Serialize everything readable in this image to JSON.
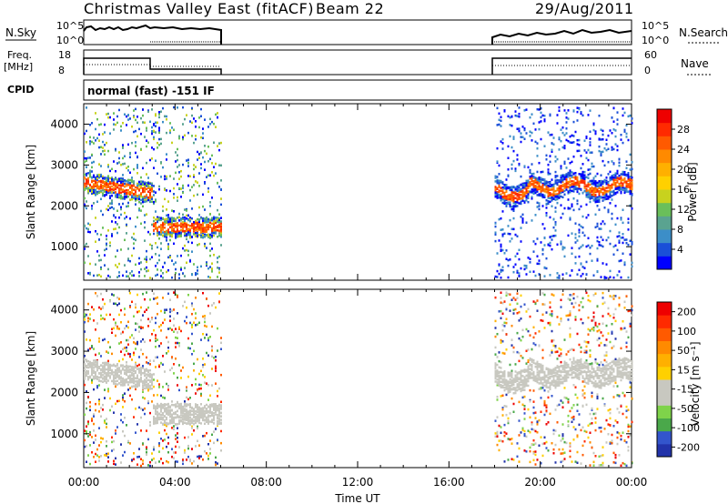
{
  "title": {
    "station": "Christmas Valley East (fitACF)",
    "beam": "Beam 22",
    "date": "29/Aug/2011"
  },
  "top_panels": {
    "nsky_label": "N.Sky",
    "nsky_ticks": [
      "10^5",
      "10^0"
    ],
    "nsearch_label": "N.Search",
    "freq_label": "Freq.",
    "freq_unit": "[MHz]",
    "freq_ticks": [
      "18",
      "8"
    ],
    "nave_label": "Nave",
    "nave_ticks": [
      "60",
      "0"
    ],
    "cpid_label": "CPID",
    "cpid_value": "normal (fast) -151 IF"
  },
  "chart_data": [
    {
      "type": "heatmap",
      "name": "power-panel",
      "ylabel": "Slant Range [km]",
      "yticks": [
        1000,
        2000,
        3000,
        4000
      ],
      "ylim": [
        180,
        4500
      ],
      "xlabel": "",
      "xticks": [],
      "colorbar": {
        "label": "Power [dB]",
        "ticks": [
          "4",
          "8",
          "12",
          "16",
          "20",
          "24",
          "28"
        ],
        "range": [
          0,
          32
        ],
        "colors": [
          "#0000ff",
          "#1a4fd8",
          "#3c8ec8",
          "#5aa390",
          "#6abf5a",
          "#c8d21e",
          "#ffd000",
          "#ffb000",
          "#ff8a00",
          "#ff5a00",
          "#ff2a00",
          "#ee0000"
        ]
      }
    },
    {
      "type": "heatmap",
      "name": "velocity-panel",
      "ylabel": "Slant Range [km]",
      "yticks": [
        1000,
        2000,
        3000,
        4000
      ],
      "ylim": [
        180,
        4500
      ],
      "xlabel": "Time UT",
      "xticks": [
        "00:00",
        "04:00",
        "08:00",
        "12:00",
        "16:00",
        "20:00",
        "00:00"
      ],
      "colorbar": {
        "label": "Velocity [m s⁻¹]",
        "ticks": [
          "200",
          "100",
          "50",
          "15",
          "-15",
          "-50",
          "-100",
          "-200"
        ],
        "colors": [
          "#2233aa",
          "#3355cc",
          "#4aa84a",
          "#7fd34a",
          "#c8c8c0",
          "#c8c8c0",
          "#ffd000",
          "#ffb000",
          "#ff8a00",
          "#ff5a00",
          "#ff2a00",
          "#ee0000"
        ]
      }
    }
  ]
}
